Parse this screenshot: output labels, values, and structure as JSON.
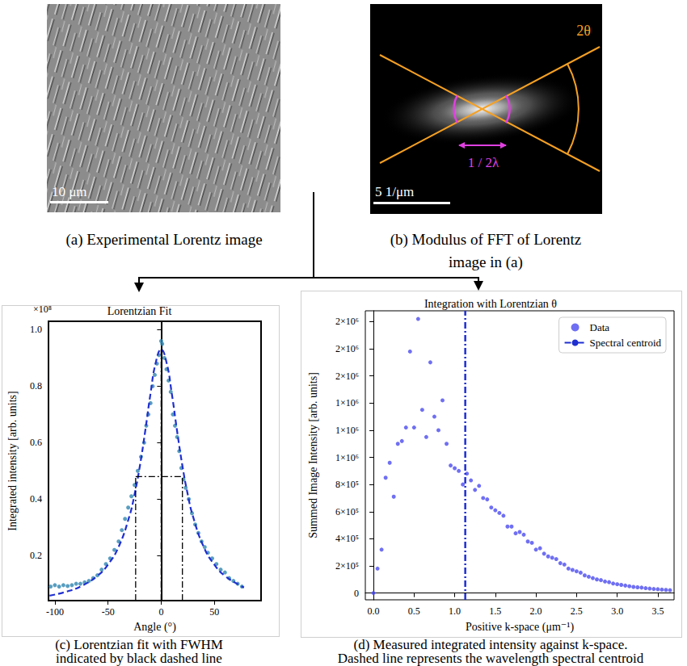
{
  "images": [
    {
      "caption": [
        "(a) Experimental Lorentz image"
      ],
      "scale_bar": "10 μm"
    },
    {
      "caption": [
        "(b) Modulus of FFT of Lorentz",
        "image in (a)"
      ],
      "scale_bar": "5 1/μm",
      "annotations": [
        "2θ",
        "1 / 2λ"
      ]
    }
  ],
  "chart_data": [
    {
      "type": "scatter",
      "title": "Lorentzian Fit",
      "x_label": "Angle (°)",
      "y_label": "Integrated intensity [arb. units]",
      "annotations": [
        {
          "text": "×10⁸"
        }
      ],
      "caption": [
        "(c) Lorentzian fit with FWHM",
        "indicated by black dashed line"
      ],
      "xlim": [
        -106,
        94
      ],
      "xticks": [
        -100,
        -50,
        0,
        50
      ],
      "ylim": [
        0.04,
        1.03
      ],
      "yticks": [
        0.2,
        0.4,
        0.6,
        0.8,
        {
          "value": 1,
          "label": "1.0"
        }
      ],
      "grid": false,
      "series": [
        {
          "type": "scatter",
          "color": "#2f86b0",
          "marker": "circle",
          "x": [
            -104,
            -100,
            -96,
            -92,
            -88,
            -84,
            -80,
            -76,
            -72,
            -68,
            -64,
            -60,
            -56,
            -52,
            -48,
            -44,
            -40,
            -37,
            -34,
            -31,
            -28,
            -25,
            -22,
            -19,
            -16,
            -14,
            -12,
            -10,
            -8,
            -6,
            -4,
            -2,
            0,
            1,
            3,
            5,
            7,
            9,
            11,
            13,
            15,
            17,
            19,
            21,
            23,
            26,
            29,
            32,
            35,
            38,
            41,
            44,
            48,
            52,
            56,
            60,
            64,
            68,
            72,
            76
          ],
          "values": [
            0.09,
            0.095,
            0.09,
            0.095,
            0.092,
            0.095,
            0.1,
            0.1,
            0.105,
            0.11,
            0.12,
            0.13,
            0.15,
            0.17,
            0.19,
            0.22,
            0.25,
            0.29,
            0.33,
            0.37,
            0.41,
            0.45,
            0.5,
            0.55,
            0.6,
            0.66,
            0.7,
            0.74,
            0.8,
            0.84,
            0.88,
            0.91,
            0.96,
            0.95,
            0.9,
            0.86,
            0.82,
            0.78,
            0.7,
            0.66,
            0.62,
            0.57,
            0.51,
            0.47,
            0.44,
            0.4,
            0.35,
            0.31,
            0.28,
            0.25,
            0.23,
            0.21,
            0.19,
            0.17,
            0.15,
            0.14,
            0.12,
            0.11,
            0.1,
            0.09
          ]
        },
        {
          "type": "line",
          "color": "#1f2fd0",
          "line_style": "dashed",
          "x": [
            -105,
            -90,
            -75,
            -60,
            -50,
            -40,
            -30,
            -25,
            -20,
            -15,
            -10,
            -5,
            0,
            5,
            10,
            15,
            20,
            25,
            30,
            40,
            50,
            60,
            75,
            78
          ],
          "values": [
            0.058,
            0.071,
            0.092,
            0.128,
            0.168,
            0.231,
            0.338,
            0.417,
            0.518,
            0.641,
            0.774,
            0.885,
            0.93,
            0.885,
            0.774,
            0.641,
            0.518,
            0.417,
            0.338,
            0.231,
            0.168,
            0.128,
            0.092,
            0.087
          ]
        }
      ],
      "fwhm": {
        "left": -24,
        "center": 0,
        "right": 20,
        "half_max": 0.48,
        "peak": 0.93,
        "color": "#000000",
        "line_style": "dashdot"
      }
    },
    {
      "type": "scatter",
      "title": "Integration with Lorentzian θ",
      "x_label": "Positive k-space (μm⁻¹)",
      "y_label": "Summed Image Intensity [arb. units]",
      "caption": [
        "(d) Measured integrated intensity against k-space.",
        "Dashed line represents the wavelength spectral centroid"
      ],
      "xlim": [
        -0.1,
        3.7
      ],
      "xticks": [
        {
          "value": 0,
          "label": "0.0"
        },
        {
          "value": 0.5,
          "label": "0.5"
        },
        {
          "value": 1,
          "label": "1.0"
        },
        {
          "value": 1.5,
          "label": "1.5"
        },
        {
          "value": 2,
          "label": "2.0"
        },
        {
          "value": 2.5,
          "label": "2.5"
        },
        {
          "value": 3,
          "label": "3.0"
        },
        {
          "value": 3.5,
          "label": "3.5"
        }
      ],
      "ylim": [
        -50000,
        2080000
      ],
      "yticks": [
        0,
        {
          "value": 200000,
          "label": "2×10⁵"
        },
        {
          "value": 400000,
          "label": "4×10⁵"
        },
        {
          "value": 600000,
          "label": "6×10⁵"
        },
        {
          "value": 800000,
          "label": "8×10⁵"
        },
        {
          "value": 1000000,
          "label": "1×10⁶"
        },
        {
          "value": 1200000,
          "label": "1×10⁶"
        },
        {
          "value": 1400000,
          "label": "1×10⁶"
        },
        {
          "value": 1600000,
          "label": "2×10⁶"
        },
        {
          "value": 1800000,
          "label": "2×10⁶"
        },
        {
          "value": 2000000,
          "label": "2×10⁶"
        }
      ],
      "grid": false,
      "legend": "upper right",
      "series": [
        {
          "name": "Data",
          "type": "scatter",
          "color": "#4b4bf0",
          "marker": "circle",
          "x": [
            0,
            0.05,
            0.1,
            0.15,
            0.2,
            0.25,
            0.3,
            0.35,
            0.4,
            0.45,
            0.5,
            0.55,
            0.6,
            0.65,
            0.7,
            0.75,
            0.8,
            0.85,
            0.9,
            0.95,
            1,
            1.05,
            1.1,
            1.15,
            1.2,
            1.25,
            1.3,
            1.35,
            1.4,
            1.45,
            1.5,
            1.55,
            1.6,
            1.65,
            1.7,
            1.75,
            1.8,
            1.85,
            1.9,
            1.95,
            2,
            2.05,
            2.1,
            2.15,
            2.2,
            2.25,
            2.3,
            2.35,
            2.4,
            2.45,
            2.5,
            2.55,
            2.6,
            2.65,
            2.7,
            2.75,
            2.8,
            2.85,
            2.9,
            2.95,
            3,
            3.05,
            3.1,
            3.15,
            3.2,
            3.25,
            3.3,
            3.35,
            3.4,
            3.45,
            3.5,
            3.55,
            3.6,
            3.65
          ],
          "values": [
            0,
            180000,
            320000,
            850000,
            960000,
            710000,
            1100000,
            1120000,
            1220000,
            1780000,
            1220000,
            2020000,
            1350000,
            1150000,
            1700000,
            1300000,
            1200000,
            1420000,
            1100000,
            940000,
            920000,
            900000,
            800000,
            880000,
            830000,
            760000,
            790000,
            700000,
            690000,
            630000,
            610000,
            590000,
            570000,
            490000,
            490000,
            440000,
            450000,
            430000,
            380000,
            370000,
            320000,
            330000,
            290000,
            270000,
            260000,
            250000,
            220000,
            210000,
            180000,
            170000,
            160000,
            150000,
            130000,
            120000,
            110000,
            100000,
            95000,
            85000,
            80000,
            70000,
            65000,
            60000,
            55000,
            50000,
            45000,
            42000,
            40000,
            36000,
            33000,
            30000,
            28000,
            25000,
            23000,
            21000
          ]
        }
      ],
      "centroid": {
        "name": "Spectral centroid",
        "x": 1.13,
        "color": "#1f2fd0",
        "line_style": "dashdot"
      }
    }
  ]
}
